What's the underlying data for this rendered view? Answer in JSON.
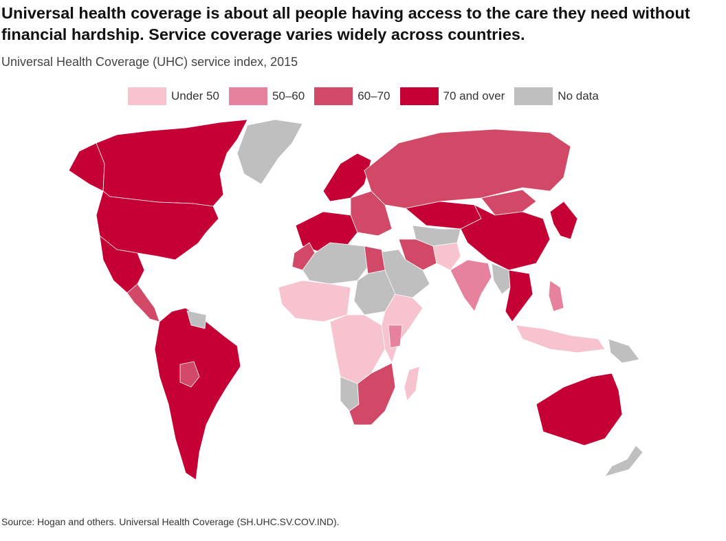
{
  "title": "Universal health coverage is about all people having access to the care they need without financial hardship. Service coverage varies widely across countries.",
  "subtitle": "Universal Health Coverage (UHC) service index, 2015",
  "legend": [
    {
      "label": "Under 50",
      "color": "#f6c3cf"
    },
    {
      "label": "50–60",
      "color": "#e6829e"
    },
    {
      "label": "60–70",
      "color": "#d24867"
    },
    {
      "label": "70 and over",
      "color": "#c40035"
    },
    {
      "label": "No data",
      "color": "#bfbfbf"
    }
  ],
  "source": "Source: Hogan and others. Universal Health Coverage (SH.UHC.SV.COV.IND).",
  "map_regions": [
    {
      "id": "canada",
      "category": "70 and over"
    },
    {
      "id": "usa",
      "category": "70 and over"
    },
    {
      "id": "alaska",
      "category": "70 and over"
    },
    {
      "id": "mexico",
      "category": "70 and over"
    },
    {
      "id": "central-america",
      "category": "60–70"
    },
    {
      "id": "greenland",
      "category": "No data"
    },
    {
      "id": "south-america",
      "category": "70 and over"
    },
    {
      "id": "bolivia",
      "category": "60–70"
    },
    {
      "id": "guianas",
      "category": "No data"
    },
    {
      "id": "western-europe",
      "category": "70 and over"
    },
    {
      "id": "scandinavia",
      "category": "70 and over"
    },
    {
      "id": "eastern-europe",
      "category": "60–70"
    },
    {
      "id": "russia",
      "category": "60–70"
    },
    {
      "id": "kazakhstan",
      "category": "70 and over"
    },
    {
      "id": "central-asia",
      "category": "No data"
    },
    {
      "id": "mongolia",
      "category": "60–70"
    },
    {
      "id": "china",
      "category": "70 and over"
    },
    {
      "id": "korea-japan",
      "category": "70 and over"
    },
    {
      "id": "north-africa",
      "category": "No data"
    },
    {
      "id": "egypt",
      "category": "60–70"
    },
    {
      "id": "morocco",
      "category": "60–70"
    },
    {
      "id": "west-africa",
      "category": "Under 50"
    },
    {
      "id": "central-africa",
      "category": "Under 50"
    },
    {
      "id": "sudan",
      "category": "No data"
    },
    {
      "id": "east-africa",
      "category": "Under 50"
    },
    {
      "id": "kenya",
      "category": "50–60"
    },
    {
      "id": "southern-africa",
      "category": "60–70"
    },
    {
      "id": "namibia",
      "category": "No data"
    },
    {
      "id": "madagascar",
      "category": "Under 50"
    },
    {
      "id": "arabia",
      "category": "No data"
    },
    {
      "id": "iran",
      "category": "60–70"
    },
    {
      "id": "afghanistan-pakistan",
      "category": "Under 50"
    },
    {
      "id": "india",
      "category": "50–60"
    },
    {
      "id": "southeast-asia",
      "category": "70 and over"
    },
    {
      "id": "myanmar",
      "category": "No data"
    },
    {
      "id": "philippines",
      "category": "50–60"
    },
    {
      "id": "indonesia",
      "category": "Under 50"
    },
    {
      "id": "papua",
      "category": "No data"
    },
    {
      "id": "australia",
      "category": "70 and over"
    },
    {
      "id": "new-zealand",
      "category": "No data"
    }
  ]
}
